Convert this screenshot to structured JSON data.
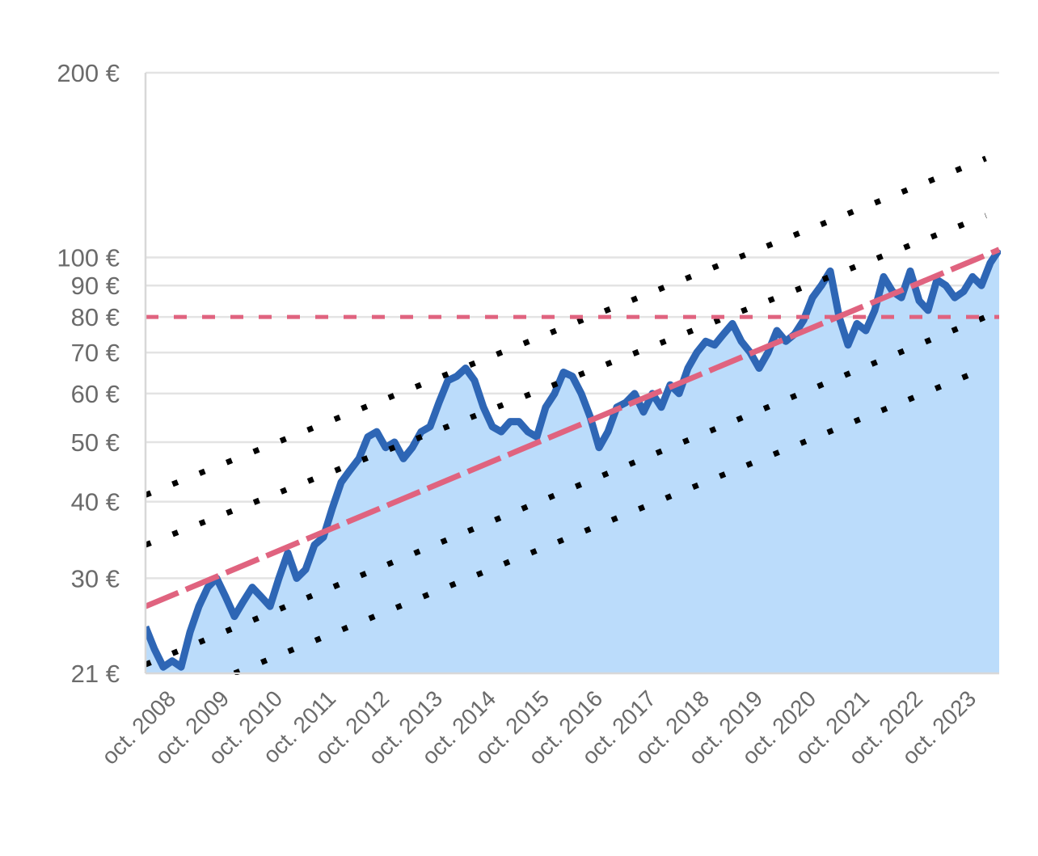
{
  "chart_data": {
    "type": "area",
    "title": "",
    "xlabel": "",
    "ylabel": "",
    "y_scale": "log",
    "ylim": [
      21,
      200
    ],
    "xlim": [
      "2008-09",
      "2024-09"
    ],
    "y_ticks": [
      {
        "value": 21,
        "label": "21 €"
      },
      {
        "value": 30,
        "label": "30 €"
      },
      {
        "value": 40,
        "label": "40 €"
      },
      {
        "value": 50,
        "label": "50 €"
      },
      {
        "value": 60,
        "label": "60 €"
      },
      {
        "value": 70,
        "label": "70 €"
      },
      {
        "value": 80,
        "label": "80 €"
      },
      {
        "value": 90,
        "label": "90 €"
      },
      {
        "value": 100,
        "label": "100 €"
      },
      {
        "value": 200,
        "label": "200 €"
      }
    ],
    "x_ticks": [
      "oct. 2008",
      "oct. 2009",
      "oct. 2010",
      "oct. 2011",
      "oct. 2012",
      "oct. 2013",
      "oct. 2014",
      "oct. 2015",
      "oct. 2016",
      "oct. 2017",
      "oct. 2018",
      "oct. 2019",
      "oct. 2020",
      "oct. 2021",
      "oct. 2022",
      "oct. 2023"
    ],
    "grid": true,
    "colors": {
      "price_line": "#2e66b5",
      "price_area": "#bbdcfb",
      "trend_line": "#e0637f",
      "reference_line": "#e0637f",
      "channel_lines": "#000000",
      "grid": "#e3e3e3"
    },
    "price_series": {
      "dates": [
        "2008-09",
        "2008-11",
        "2009-01",
        "2009-03",
        "2009-05",
        "2009-07",
        "2009-09",
        "2009-11",
        "2010-01",
        "2010-03",
        "2010-05",
        "2010-07",
        "2010-09",
        "2010-11",
        "2011-01",
        "2011-03",
        "2011-05",
        "2011-07",
        "2011-09",
        "2011-11",
        "2012-01",
        "2012-03",
        "2012-05",
        "2012-07",
        "2012-09",
        "2012-11",
        "2013-01",
        "2013-03",
        "2013-05",
        "2013-07",
        "2013-09",
        "2013-11",
        "2014-01",
        "2014-03",
        "2014-05",
        "2014-07",
        "2014-09",
        "2014-11",
        "2015-01",
        "2015-03",
        "2015-05",
        "2015-07",
        "2015-09",
        "2015-11",
        "2016-01",
        "2016-03",
        "2016-05",
        "2016-07",
        "2016-09",
        "2016-11",
        "2017-01",
        "2017-03",
        "2017-05",
        "2017-07",
        "2017-09",
        "2017-11",
        "2018-01",
        "2018-03",
        "2018-05",
        "2018-07",
        "2018-09",
        "2018-11",
        "2019-01",
        "2019-03",
        "2019-05",
        "2019-07",
        "2019-09",
        "2019-11",
        "2020-01",
        "2020-03",
        "2020-05",
        "2020-07",
        "2020-09",
        "2020-11",
        "2021-01",
        "2021-03",
        "2021-05",
        "2021-07",
        "2021-09",
        "2021-11",
        "2022-01",
        "2022-03",
        "2022-05",
        "2022-07",
        "2022-09",
        "2022-11",
        "2023-01",
        "2023-03",
        "2023-05",
        "2023-07",
        "2023-09",
        "2023-11",
        "2024-01",
        "2024-03",
        "2024-05",
        "2024-07",
        "2024-09"
      ],
      "values": [
        25,
        23,
        21.5,
        22,
        21.5,
        24.5,
        27,
        29,
        30,
        28,
        26,
        27.5,
        29,
        28,
        27,
        30,
        33,
        30,
        31,
        34,
        35,
        39,
        43,
        45,
        47,
        51,
        52,
        49,
        50,
        47,
        49,
        52,
        53,
        58,
        63,
        64,
        66,
        63,
        57,
        53,
        52,
        54,
        54,
        52,
        51,
        57,
        60,
        65,
        64,
        60,
        55,
        49,
        52,
        57,
        58,
        60,
        56,
        60,
        57,
        62,
        60,
        66,
        70,
        73,
        72,
        75,
        78,
        73,
        70,
        66,
        70,
        76,
        73,
        75,
        79,
        86,
        90,
        95,
        80,
        72,
        78,
        76,
        82,
        93,
        88,
        86,
        95,
        85,
        82,
        92,
        90,
        86,
        88,
        93,
        90,
        98,
        103
      ]
    },
    "trend_line": {
      "name": "",
      "style": "dashed",
      "points": [
        [
          "2008-09",
          27
        ],
        [
          "2024-09",
          103
        ]
      ]
    },
    "reference_line": {
      "name": "",
      "style": "dashed",
      "value": 80
    },
    "channel_lines": [
      {
        "style": "dotted",
        "points": [
          [
            "2008-09",
            41
          ],
          [
            "2024-06",
            145
          ]
        ]
      },
      {
        "style": "dotted",
        "points": [
          [
            "2008-09",
            34
          ],
          [
            "2024-06",
            117
          ]
        ]
      },
      {
        "style": "dotted",
        "points": [
          [
            "2008-09",
            21.7
          ],
          [
            "2024-06",
            80
          ]
        ]
      },
      {
        "style": "dotted",
        "points": [
          [
            "2010-05",
            21
          ],
          [
            "2024-06",
            66
          ]
        ]
      }
    ]
  }
}
